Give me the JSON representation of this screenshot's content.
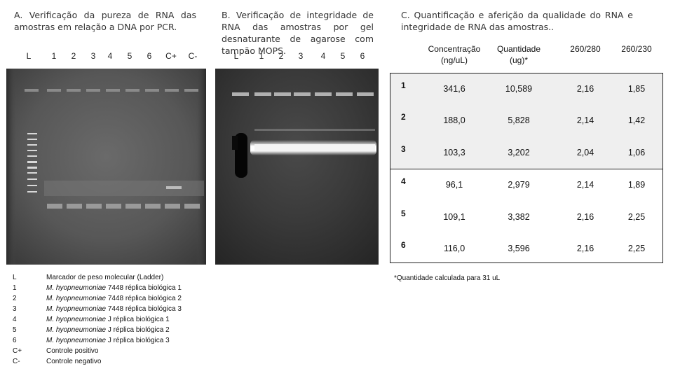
{
  "panel_a": {
    "letter": "A.",
    "title": "Verificação da pureza de RNA das amostras em relação a DNA por PCR.",
    "lanes": [
      "L",
      "1",
      "2",
      "3",
      "4",
      "5",
      "6",
      "C+",
      "C-"
    ]
  },
  "panel_b": {
    "letter": "B.",
    "title": "Verificação de integridade de RNA das amostras por gel desnaturante de agarose com tampão MOPS.",
    "lanes": [
      "L",
      "1",
      "2",
      "3",
      "4",
      "5",
      "6"
    ]
  },
  "panel_c": {
    "letter": "C.",
    "title": "Quantificação e aferição da qualidade do RNA e integridade de RNA das amostras..",
    "headers": [
      {
        "line1": "Concentração",
        "line2": "(ng/uL)"
      },
      {
        "line1": "Quantidade",
        "line2": "(ug)*"
      },
      {
        "line1": "260/280",
        "line2": ""
      },
      {
        "line1": "260/230",
        "line2": ""
      }
    ],
    "rows": [
      {
        "id": "1",
        "conc": "341,6",
        "qty": "10,589",
        "r280": "2,16",
        "r230": "1,85"
      },
      {
        "id": "2",
        "conc": "188,0",
        "qty": "5,828",
        "r280": "2,14",
        "r230": "1,42"
      },
      {
        "id": "3",
        "conc": "103,3",
        "qty": "3,202",
        "r280": "2,04",
        "r230": "1,06"
      },
      {
        "id": "4",
        "conc": "96,1",
        "qty": "2,979",
        "r280": "2,14",
        "r230": "1,89"
      },
      {
        "id": "5",
        "conc": "109,1",
        "qty": "3,382",
        "r280": "2,16",
        "r230": "2,25"
      },
      {
        "id": "6",
        "conc": "116,0",
        "qty": "3,596",
        "r280": "2,16",
        "r230": "2,25"
      }
    ],
    "footnote": "*Quantidade calculada para 31 uL"
  },
  "legend": [
    {
      "key": "L",
      "organism": "",
      "text": "Marcador de peso molecular (Ladder)"
    },
    {
      "key": "1",
      "organism": "M. hyopneumoniae",
      "text": " 7448 réplica biológica 1"
    },
    {
      "key": "2",
      "organism": "M. hyopneumoniae",
      "text": " 7448 réplica biológica 2"
    },
    {
      "key": "3",
      "organism": "M. hyopneumoniae",
      "text": " 7448 réplica biológica 3"
    },
    {
      "key": "4",
      "organism": "M. hyopneumoniae",
      "text": " J réplica biológica 1"
    },
    {
      "key": "5",
      "organism": "M. hyopneumoniae",
      "text": " J réplica biológica 2"
    },
    {
      "key": "6",
      "organism": "M. hyopneumoniae",
      "text": " J réplica biológica 3"
    },
    {
      "key": "C+",
      "organism": "",
      "text": "Controle positivo"
    },
    {
      "key": "C-",
      "organism": "",
      "text": "Controle negativo"
    }
  ]
}
